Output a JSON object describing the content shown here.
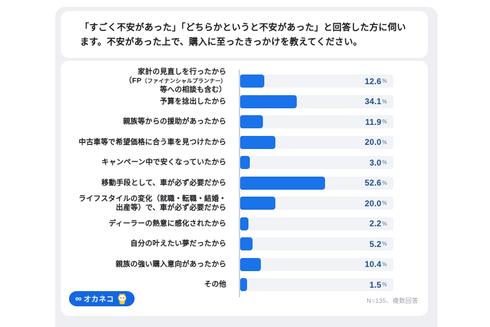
{
  "title": {
    "line1": "「すごく不安があった」「どちらかというと不安があった」と回答した方に伺い",
    "line2": "ます。不安があった上で、購入に至ったきっかけを教えてください。"
  },
  "chart_data": {
    "type": "bar",
    "orientation": "horizontal",
    "unit": "%",
    "xlim": [
      0,
      100
    ],
    "grid": false,
    "legend": "none",
    "bar_color": "#1a73e8",
    "track_color": "#f1f3f6",
    "value_color": "#1b4c8c",
    "categories": [
      {
        "lines": [
          [
            {
              "t": "家計の見直しを行ったから"
            }
          ],
          [
            {
              "t": "（FP"
            },
            {
              "t": "（ファイナンシャルプランナー）",
              "small": true
            },
            {
              "t": "等への相談も含む）"
            }
          ]
        ]
      },
      {
        "lines": [
          [
            {
              "t": "予算を捻出したから"
            }
          ]
        ]
      },
      {
        "lines": [
          [
            {
              "t": "親族等からの援助があったから"
            }
          ]
        ]
      },
      {
        "lines": [
          [
            {
              "t": "中古車等で希望価格に合う車を見つけたから"
            }
          ]
        ]
      },
      {
        "lines": [
          [
            {
              "t": "キャンペーン中で安くなっていたから"
            }
          ]
        ]
      },
      {
        "lines": [
          [
            {
              "t": "移動手段として、車が必ず必要だから"
            }
          ]
        ]
      },
      {
        "lines": [
          [
            {
              "t": "ライフスタイルの変化（就職・転職・結婚・"
            }
          ],
          [
            {
              "t": "出産等）で、車が必ず必要だから"
            }
          ]
        ]
      },
      {
        "lines": [
          [
            {
              "t": "ディーラーの熱意に感化されたから"
            }
          ]
        ]
      },
      {
        "lines": [
          [
            {
              "t": "自分の叶えたい夢だったから"
            }
          ]
        ]
      },
      {
        "lines": [
          [
            {
              "t": "親族の強い購入意向があったから"
            }
          ]
        ]
      },
      {
        "lines": [
          [
            {
              "t": "その他"
            }
          ]
        ]
      }
    ],
    "values": [
      12.6,
      34.1,
      11.9,
      20.0,
      3.0,
      52.6,
      20.0,
      2.2,
      5.2,
      10.4,
      1.5
    ],
    "value_labels": [
      "12.6",
      "34.1",
      "11.9",
      "20.0",
      "3.0",
      "52.6",
      "20.0",
      "2.2",
      "5.2",
      "10.4",
      "1.5"
    ]
  },
  "footer": {
    "logo_mark": "∞",
    "logo_text": "オカネコ",
    "note": "N=135、複数回答"
  }
}
